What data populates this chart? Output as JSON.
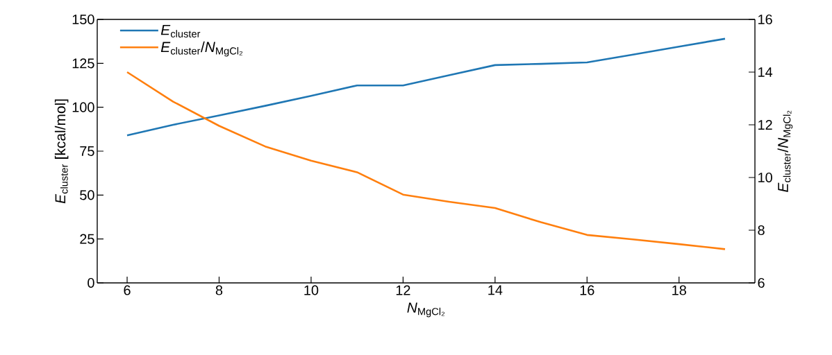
{
  "chart_data": {
    "type": "line",
    "xlabel": "*N*$_{MgCl₂}$",
    "ylabel": "*E*$_{cluster}$ [kcal/mol]",
    "y2label": "*E*$_{cluster}$/*N*$_{MgCl₂}$",
    "x": [
      6,
      7,
      8,
      9,
      10,
      11,
      12,
      13,
      14,
      15,
      16,
      17,
      18,
      19
    ],
    "series": [
      {
        "name": "*E*$_{cluster}$",
        "color": "#1f77b4",
        "values": [
          84,
          90,
          95.3,
          100.8,
          106.5,
          112.4,
          112.4,
          118.2,
          124,
          124.7,
          125.5,
          130,
          134.5,
          139
        ]
      },
      {
        "name": "*E*$_{cluster}$/*N*$_{MgCl₂}$",
        "color": "#ff7f0e",
        "axis": "y2",
        "values": [
          14.0,
          12.88,
          11.96,
          11.18,
          10.64,
          10.2,
          9.35,
          9.08,
          8.84,
          8.3,
          7.82,
          7.65,
          7.47,
          7.28
        ]
      }
    ],
    "xlim": [
      5.35,
      19.65
    ],
    "xticks": [
      6,
      8,
      10,
      12,
      14,
      16,
      18
    ],
    "ylim": [
      0,
      150
    ],
    "yticks": [
      0,
      25,
      50,
      75,
      100,
      125,
      150
    ],
    "y2lim": [
      6,
      16
    ],
    "y2ticks": [
      6,
      8,
      10,
      12,
      14,
      16
    ],
    "legend": "top left",
    "marker": "none"
  }
}
